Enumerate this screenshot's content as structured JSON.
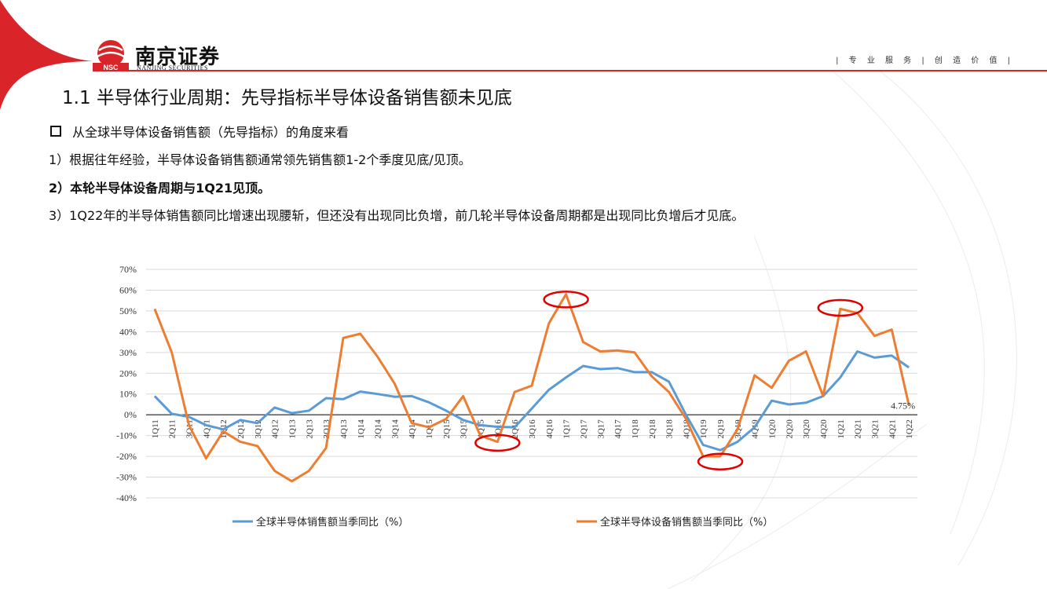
{
  "brand": {
    "name_cn": "南京证券",
    "name_en": "NANJING SECURITIES",
    "logo_abbr": "NSC",
    "slogan": "| 专 业 服 务 | 创 造 价 值 |",
    "accent_color": "#d9252a"
  },
  "title": "1.1 半导体行业周期：先导指标半导体设备销售额未见底",
  "bullet": "从全球半导体设备销售额（先导指标）的角度来看",
  "points": [
    "1）根据往年经验，半导体设备销售额通常领先销售额1-2个季度见底/见顶。",
    "2）本轮半导体设备周期与1Q21见顶。",
    "3）1Q22年的半导体销售额同比增速出现腰斩，但还没有出现同比负增，前几轮半导体设备周期都是出现同比负增后才见底。"
  ],
  "chart_data": {
    "type": "line",
    "categories": [
      "1Q11",
      "2Q11",
      "3Q11",
      "4Q11",
      "1Q12",
      "2Q12",
      "3Q12",
      "4Q12",
      "1Q13",
      "2Q13",
      "3Q13",
      "4Q13",
      "1Q14",
      "2Q14",
      "3Q14",
      "4Q14",
      "1Q15",
      "2Q15",
      "3Q15",
      "4Q15",
      "1Q16",
      "2Q16",
      "3Q16",
      "4Q16",
      "1Q17",
      "2Q17",
      "3Q17",
      "4Q17",
      "1Q18",
      "2Q18",
      "3Q18",
      "4Q18",
      "1Q19",
      "2Q19",
      "3Q19",
      "4Q19",
      "1Q20",
      "2Q20",
      "3Q20",
      "4Q20",
      "1Q21",
      "2Q21",
      "3Q21",
      "4Q21",
      "1Q22"
    ],
    "ylim": [
      -0.4,
      0.7
    ],
    "yticks": [
      "70%",
      "60%",
      "50%",
      "40%",
      "30%",
      "20%",
      "10%",
      "0%",
      "-10%",
      "-20%",
      "-30%",
      "-40%"
    ],
    "series": [
      {
        "name": "全球半导体销售额当季同比（%）",
        "color": "#5b9bd5",
        "values": [
          0.09,
          0.005,
          -0.01,
          -0.05,
          -0.07,
          -0.025,
          -0.04,
          0.035,
          0.008,
          0.02,
          0.08,
          0.075,
          0.112,
          0.1,
          0.087,
          0.09,
          0.06,
          0.02,
          -0.025,
          -0.05,
          -0.058,
          -0.06,
          0.03,
          0.12,
          0.18,
          0.235,
          0.22,
          0.225,
          0.205,
          0.205,
          0.16,
          0.0,
          -0.145,
          -0.17,
          -0.13,
          -0.06,
          0.068,
          0.05,
          0.058,
          0.09,
          0.18,
          0.305,
          0.275,
          0.285,
          0.2278
        ]
      },
      {
        "name": "全球半导体设备销售额当季同比（%）",
        "color": "#ed7d31",
        "values": [
          0.51,
          0.3,
          -0.05,
          -0.21,
          -0.08,
          -0.13,
          -0.15,
          -0.27,
          -0.32,
          -0.27,
          -0.16,
          0.37,
          0.39,
          0.28,
          0.15,
          -0.04,
          -0.06,
          -0.02,
          0.09,
          -0.1,
          -0.13,
          0.11,
          0.14,
          0.44,
          0.58,
          0.35,
          0.305,
          0.31,
          0.3,
          0.185,
          0.11,
          -0.02,
          -0.2,
          -0.2,
          -0.07,
          0.19,
          0.13,
          0.26,
          0.305,
          0.09,
          0.51,
          0.49,
          0.38,
          0.41,
          0.0475
        ]
      }
    ],
    "data_labels": [
      {
        "series": 1,
        "index": 44,
        "text": "4.75%"
      }
    ],
    "highlight_circles": [
      {
        "category": "1Q16",
        "value": -0.135
      },
      {
        "category": "1Q17",
        "value": 0.555
      },
      {
        "category": "2Q19",
        "value": -0.225
      },
      {
        "category": "1Q21",
        "value": 0.515
      }
    ],
    "legend_position": "bottom",
    "grid": true
  }
}
